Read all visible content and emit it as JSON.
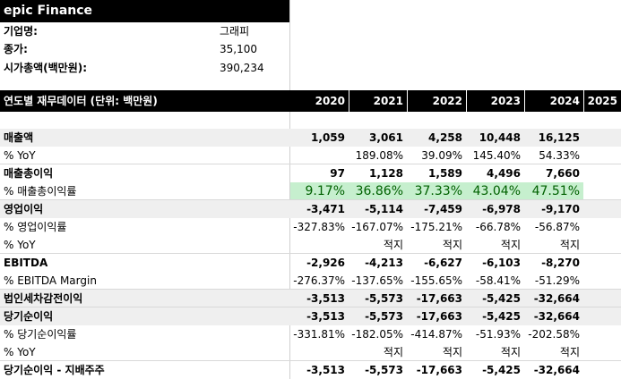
{
  "company": {
    "title": "epic Finance",
    "info": [
      {
        "label": "기업명:",
        "value": "그래피"
      },
      {
        "label": "종가:",
        "value": "35,100"
      },
      {
        "label": "시가총액(백만원):",
        "value": "390,234"
      }
    ]
  },
  "table": {
    "header_label": "연도별 재무데이터 (단위: 백만원)",
    "years": [
      "2020",
      "2021",
      "2022",
      "2023",
      "2024",
      "2025"
    ],
    "rows": [
      {
        "label": "매출액",
        "bold": true,
        "shade": true,
        "values": [
          "1,059",
          "3,061",
          "4,258",
          "10,448",
          "16,125",
          ""
        ]
      },
      {
        "label": "% YoY",
        "bold": false,
        "shade": false,
        "values": [
          "",
          "189.08%",
          "39.09%",
          "145.40%",
          "54.33%",
          ""
        ]
      },
      {
        "label": "매출총이익",
        "bold": true,
        "shade": false,
        "values": [
          "97",
          "1,128",
          "1,589",
          "4,496",
          "7,660",
          ""
        ]
      },
      {
        "label": "% 매출총이익률",
        "bold": false,
        "shade": false,
        "highlight": true,
        "values": [
          "9.17%",
          "36.86%",
          "37.33%",
          "43.04%",
          "47.51%",
          ""
        ]
      },
      {
        "label": "영업이익",
        "bold": true,
        "shade": true,
        "values": [
          "-3,471",
          "-5,114",
          "-7,459",
          "-6,978",
          "-9,170",
          ""
        ]
      },
      {
        "label": "% 영업이익률",
        "bold": false,
        "shade": false,
        "values": [
          "-327.83%",
          "-167.07%",
          "-175.21%",
          "-66.78%",
          "-56.87%",
          ""
        ]
      },
      {
        "label": "% YoY",
        "bold": false,
        "shade": false,
        "values": [
          "",
          "적지",
          "적지",
          "적지",
          "적지",
          ""
        ]
      },
      {
        "label": "EBITDA",
        "bold": true,
        "shade": false,
        "values": [
          "-2,926",
          "-4,213",
          "-6,627",
          "-6,103",
          "-8,270",
          ""
        ]
      },
      {
        "label": "% EBITDA Margin",
        "bold": false,
        "shade": false,
        "values": [
          "-276.37%",
          "-137.65%",
          "-155.65%",
          "-58.41%",
          "-51.29%",
          ""
        ]
      },
      {
        "label": "법인세차감전이익",
        "bold": true,
        "shade": true,
        "values": [
          "-3,513",
          "-5,573",
          "-17,663",
          "-5,425",
          "-32,664",
          ""
        ]
      },
      {
        "label": "당기순이익",
        "bold": true,
        "shade": true,
        "values": [
          "-3,513",
          "-5,573",
          "-17,663",
          "-5,425",
          "-32,664",
          ""
        ]
      },
      {
        "label": "% 당기순이익률",
        "bold": false,
        "shade": false,
        "values": [
          "-331.81%",
          "-182.05%",
          "-414.87%",
          "-51.93%",
          "-202.58%",
          ""
        ]
      },
      {
        "label": "% YoY",
        "bold": false,
        "shade": false,
        "values": [
          "",
          "적지",
          "적지",
          "적지",
          "적지",
          ""
        ]
      },
      {
        "label": "당기순이익 - 지배주주",
        "bold": true,
        "shade": false,
        "values": [
          "-3,513",
          "-5,573",
          "-17,663",
          "-5,425",
          "-32,664",
          ""
        ]
      }
    ]
  }
}
